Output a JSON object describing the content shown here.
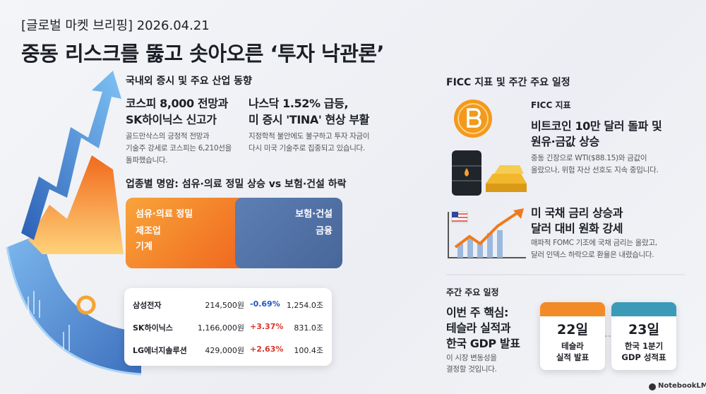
{
  "header": {
    "kicker": "[글로벌 마켓 브리핑] 2026.04.21",
    "title": "중동 리스크를 뚫고 솟아오른 ‘투자 낙관론’"
  },
  "domestic": {
    "heading": "국내외 증시 및 주요 산업 동향",
    "news": [
      {
        "title": [
          "코스피 8,000 전망과",
          "SK하이닉스 신고가"
        ],
        "body": [
          "골드만삭스의 긍정적 전망과",
          "기술주 강세로 코스피는 6,210선을",
          "돌파했습니다."
        ]
      },
      {
        "title": [
          "나스닥 1.52% 급등,",
          "미 증시 'TINA' 현상 부활"
        ],
        "body": [
          "지정학적 불안에도 불구하고 투자 자금이",
          "다시 미국 기술주로 집중되고 있습니다."
        ]
      }
    ]
  },
  "sectors": {
    "heading": "업종별 명암: 섬유·의료 정밀 상승 vs 보험·건설 하락",
    "up": [
      "섬유·의료 정밀",
      "제조업",
      "기계"
    ],
    "down": [
      "보험·건설",
      "금융"
    ]
  },
  "stocks": {
    "rows": [
      [
        "삼성전자",
        "214,500원",
        "-0.69%",
        "1,254.0조"
      ],
      [
        "SK하이닉스",
        "1,166,000원",
        "+3.37%",
        "831.0조"
      ],
      [
        "LG에너지솔루션",
        "429,000원",
        "+2.63%",
        "100.4조"
      ]
    ]
  },
  "ficc": {
    "heading": "FICC 지표 및 주간 주요 일정",
    "items": [
      {
        "label": "FICC 지표",
        "title": [
          "비트코인 10만 달러 돌파 및",
          "원유·금값 상승"
        ],
        "body": [
          "중동 긴장으로 WTI($88.15)와 금값이",
          "올랐으나, 위험 자산 선호도 지속 중입니다."
        ]
      },
      {
        "title": [
          "미 국채 금리 상승과",
          "달러 대비 원화 강세"
        ],
        "body": [
          "매파적 FOMC 기조에 국채 금리는 올랐고,",
          "달러 인덱스 하락으로 환율은 내렸습니다."
        ]
      }
    ]
  },
  "weekly": {
    "heading": "주간 주요 일정",
    "title": [
      "이번 주 핵심:",
      "테슬라 실적과",
      "한국 GDP 발표"
    ],
    "body": [
      "이 시장 변동성을",
      "결정할 것입니다."
    ],
    "events": [
      {
        "date": "22일",
        "lines": [
          "테슬라",
          "실적 발표"
        ]
      },
      {
        "date": "23일",
        "lines": [
          "한국 1분기",
          "GDP 성적표"
        ]
      }
    ]
  },
  "brand": "NotebookLM"
}
